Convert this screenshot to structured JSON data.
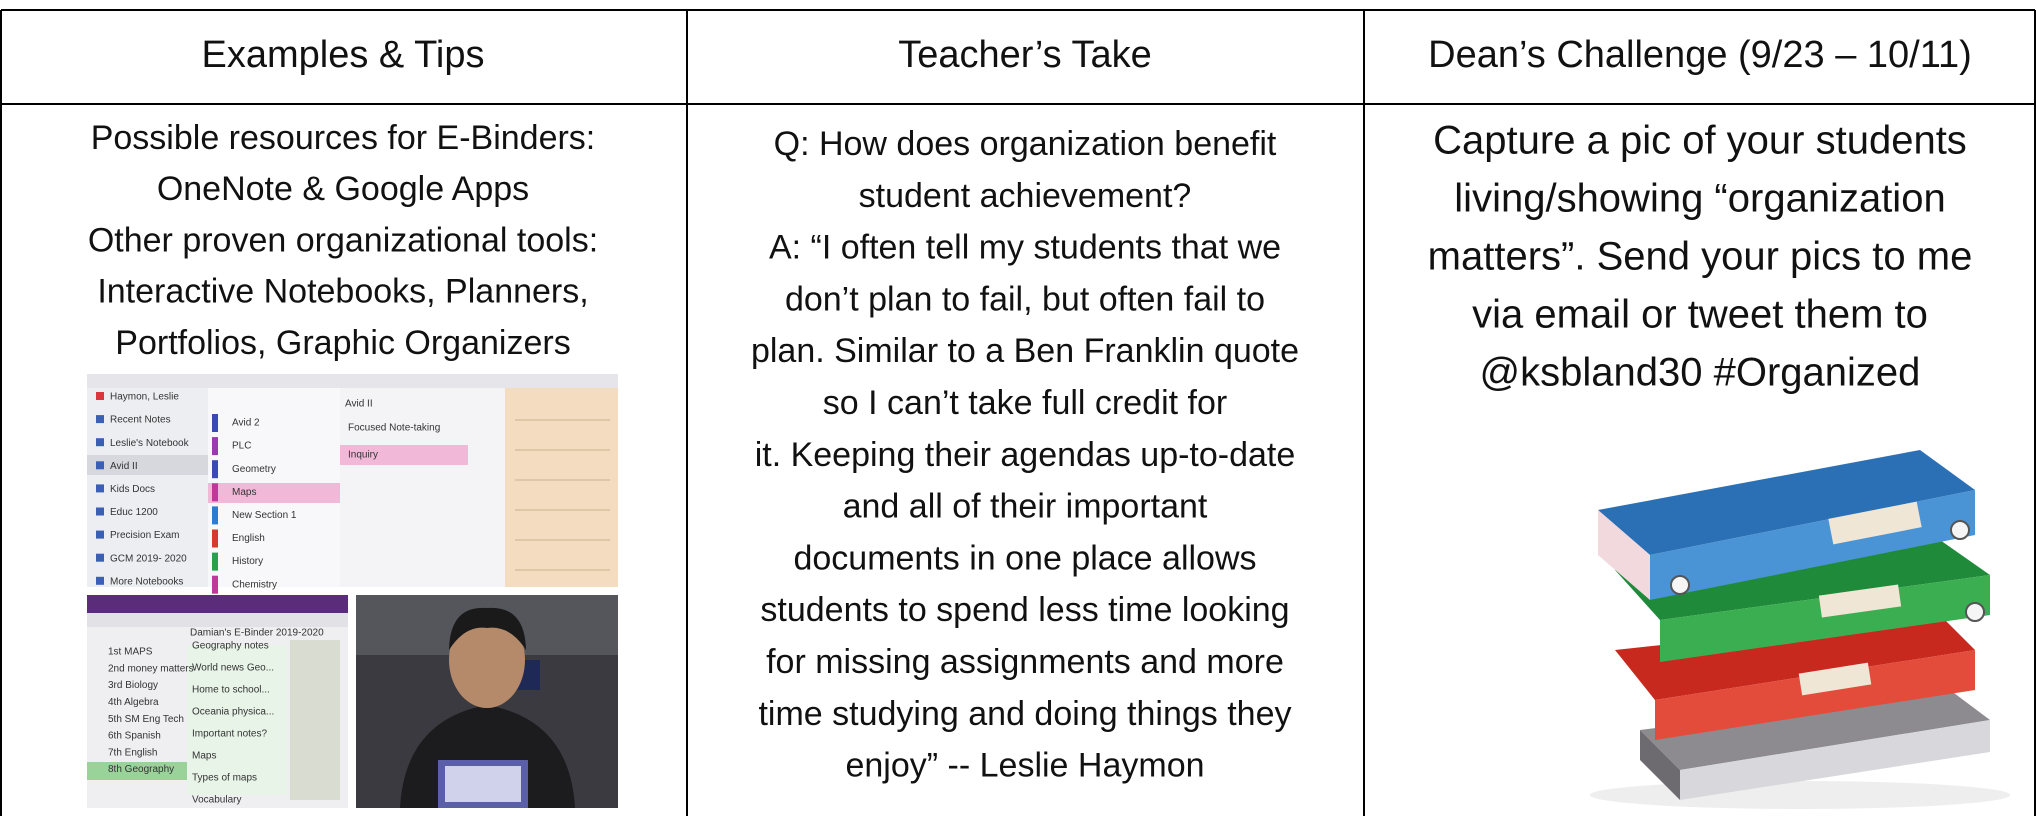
{
  "columns": [
    {
      "header": "Examples & Tips",
      "lines": [
        "Possible resources for E-Binders:",
        "OneNote & Google Apps",
        "Other proven organizational tools:",
        "Interactive Notebooks, Planners,",
        "Portfolios, Graphic Organizers"
      ],
      "screenshot_1": {
        "title": "Avid II",
        "notebooks": [
          "Haymon, Leslie",
          "Recent Notes",
          "Leslie's Notebook",
          "Avid II",
          "Kids Docs",
          "Educ 1200",
          "Precision Exam",
          "GCM 2019- 2020",
          "More Notebooks"
        ],
        "sections": [
          "Avid 2",
          "PLC",
          "Geometry",
          "Maps",
          "New Section 1",
          "English",
          "History",
          "Chemistry"
        ],
        "pages": [
          "Focused Note-taking",
          "Inquiry"
        ]
      },
      "screenshot_2": {
        "title": "Damian's E-Binder 2019-2020",
        "sections": [
          "1st MAPS",
          "2nd money matters",
          "3rd Biology",
          "4th Algebra",
          "5th SM Eng Tech",
          "6th Spanish",
          "7th English",
          "8th Geography"
        ],
        "pages": [
          "Geography notes",
          "World news Geo...",
          "Home to school...",
          "Oceania physica...",
          "Important notes?",
          "Maps",
          "Types of maps",
          "Vocabulary"
        ]
      }
    },
    {
      "header": "Teacher’s Take",
      "lines": [
        "Q: How does organization benefit",
        "student achievement?",
        "A: “I often tell my students that we",
        "don’t plan to fail, but often fail to",
        "plan. Similar to a Ben Franklin quote",
        "so I can’t take full credit for",
        "it. Keeping their agendas up-to-date",
        "and all of their important",
        "documents in one place allows",
        "students to spend less time looking",
        "for missing assignments and more",
        "time studying and doing things they",
        "enjoy”  -- Leslie Haymon"
      ]
    },
    {
      "header": "Dean’s Challenge (9/23 – 10/11)",
      "lines": [
        "Capture a pic of your students",
        "living/showing “organization",
        "matters”.  Send your pics to me",
        "via email or  tweet them to",
        "@ksbland30 #Organized"
      ]
    }
  ]
}
